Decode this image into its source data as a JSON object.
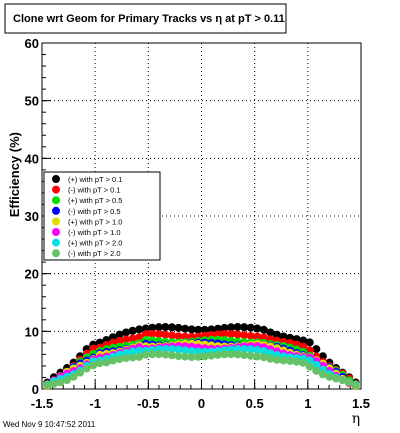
{
  "chart_data": {
    "type": "scatter",
    "title": "Clone wrt Geom for Primary Tracks vs   η at pT > 0.11",
    "xlabel": "η",
    "ylabel": "Efficiency (%)",
    "xlim": [
      -1.5,
      1.5
    ],
    "ylim": [
      0,
      60
    ],
    "xticks": [
      "-1.5",
      "-1",
      "-0.5",
      "0",
      "0.5",
      "1",
      "1.5"
    ],
    "yticks": [
      "0",
      "10",
      "20",
      "30",
      "40",
      "50",
      "60"
    ],
    "grid": true,
    "legend_position": "left-middle",
    "series": [
      {
        "name": "(+) with pT > 0.1",
        "color": "#000000",
        "plateau": 10.5,
        "edge": 1.02
      },
      {
        "name": "(-) with pT > 0.1",
        "color": "#ff0000",
        "plateau": 9.3,
        "edge": 1.0
      },
      {
        "name": "(+) with pT > 0.5",
        "color": "#00dd00",
        "plateau": 8.3,
        "edge": 1.0
      },
      {
        "name": "(-) with pT > 0.5",
        "color": "#0000ff",
        "plateau": 7.8,
        "edge": 1.0
      },
      {
        "name": "(+) with pT > 1.0",
        "color": "#e0e000",
        "plateau": 7.6,
        "edge": 1.0
      },
      {
        "name": "(-) with pT > 1.0",
        "color": "#ff00ff",
        "plateau": 7.2,
        "edge": 1.0
      },
      {
        "name": "(+) with pT > 2.0",
        "color": "#00e0e0",
        "plateau": 6.7,
        "edge": 0.98
      },
      {
        "name": "(-) with pT > 2.0",
        "color": "#66c266",
        "plateau": 5.8,
        "edge": 0.95
      }
    ]
  },
  "footer": {
    "timestamp": "Wed Nov  9 10:47:52 2011"
  }
}
